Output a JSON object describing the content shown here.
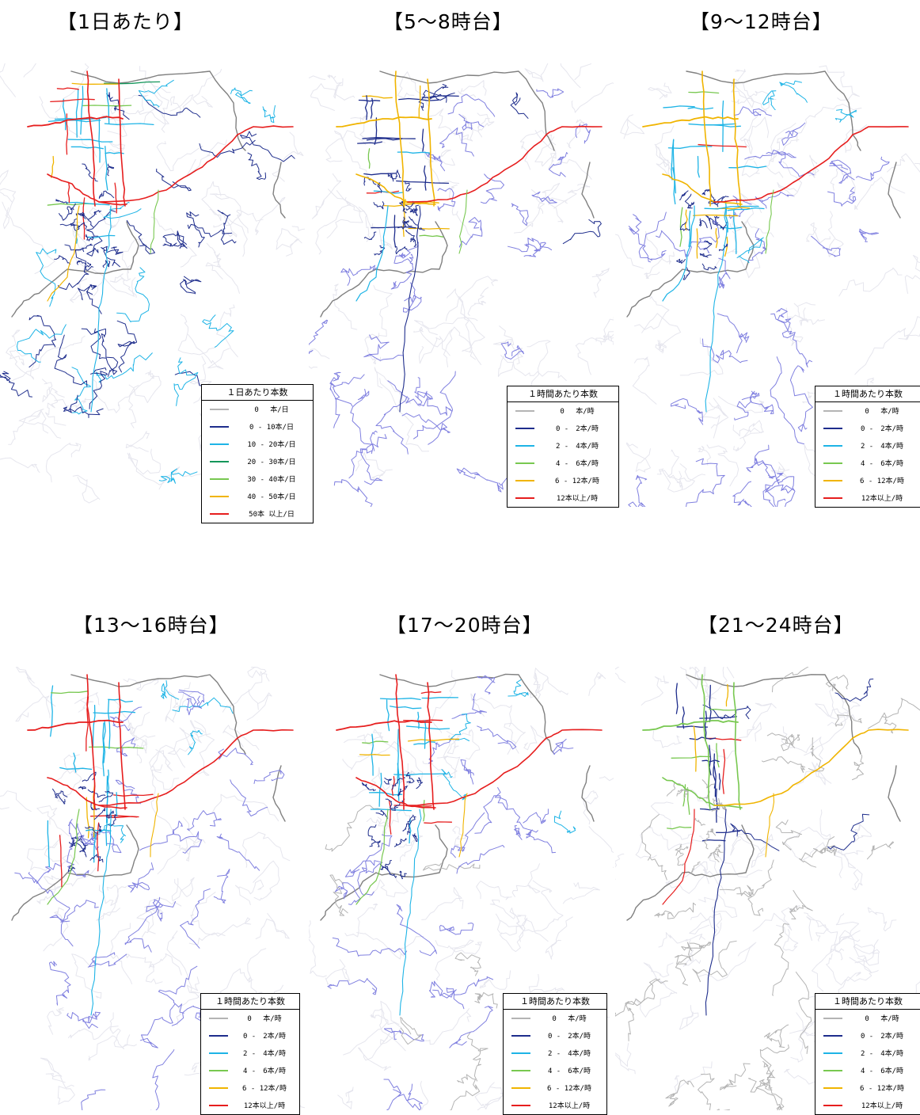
{
  "colors": {
    "c0": "#b4b4b4",
    "c1": "#1e2d8c",
    "c2": "#1eb4e6",
    "c3": "#14965a",
    "c4": "#78c850",
    "c5": "#f0b400",
    "c6": "#e61e1e",
    "base": "#8080e0",
    "boundary": "#808080"
  },
  "panels": [
    {
      "title": "【1日あたり】",
      "legend": {
        "title": "１日あたり本数",
        "items": [
          {
            "label": "0　 本/日",
            "color": "#b4b4b4"
          },
          {
            "label": "0 - 10本/日",
            "color": "#1e2d8c"
          },
          {
            "label": "10 - 20本/日",
            "color": "#1eb4e6"
          },
          {
            "label": "20 - 30本/日",
            "color": "#14965a"
          },
          {
            "label": "30 - 40本/日",
            "color": "#78c850"
          },
          {
            "label": "40 - 50本/日",
            "color": "#f0b400"
          },
          {
            "label": "50本 以上/日",
            "color": "#e61e1e"
          }
        ]
      }
    },
    {
      "title": "【5～8時台】",
      "legend": {
        "title": "１時間あたり本数",
        "items": [
          {
            "label": "0　 本/時",
            "color": "#b4b4b4"
          },
          {
            "label": "0 -　2本/時",
            "color": "#1e2d8c"
          },
          {
            "label": "2 -　4本/時",
            "color": "#1eb4e6"
          },
          {
            "label": "4 -　6本/時",
            "color": "#78c850"
          },
          {
            "label": "6 - 12本/時",
            "color": "#f0b400"
          },
          {
            "label": "12本以上/時",
            "color": "#e61e1e"
          }
        ]
      }
    },
    {
      "title": "【9～12時台】",
      "legend": {
        "title": "１時間あたり本数",
        "items": [
          {
            "label": "0　 本/時",
            "color": "#b4b4b4"
          },
          {
            "label": "0 -　2本/時",
            "color": "#1e2d8c"
          },
          {
            "label": "2 -　4本/時",
            "color": "#1eb4e6"
          },
          {
            "label": "4 -　6本/時",
            "color": "#78c850"
          },
          {
            "label": "6 - 12本/時",
            "color": "#f0b400"
          },
          {
            "label": "12本以上/時",
            "color": "#e61e1e"
          }
        ]
      }
    },
    {
      "title": "【13～16時台】",
      "legend": {
        "title": "１時間あたり本数",
        "items": [
          {
            "label": "0　 本/時",
            "color": "#b4b4b4"
          },
          {
            "label": "0 -　2本/時",
            "color": "#1e2d8c"
          },
          {
            "label": "2 -　4本/時",
            "color": "#1eb4e6"
          },
          {
            "label": "4 -　6本/時",
            "color": "#78c850"
          },
          {
            "label": "6 - 12本/時",
            "color": "#f0b400"
          },
          {
            "label": "12本以上/時",
            "color": "#e61e1e"
          }
        ]
      }
    },
    {
      "title": "【17～20時台】",
      "legend": {
        "title": "１時間あたり本数",
        "items": [
          {
            "label": "0　 本/時",
            "color": "#b4b4b4"
          },
          {
            "label": "0 -　2本/時",
            "color": "#1e2d8c"
          },
          {
            "label": "2 -　4本/時",
            "color": "#1eb4e6"
          },
          {
            "label": "4 -　6本/時",
            "color": "#78c850"
          },
          {
            "label": "6 - 12本/時",
            "color": "#f0b400"
          },
          {
            "label": "12本以上/時",
            "color": "#e61e1e"
          }
        ]
      }
    },
    {
      "title": "【21～24時台】",
      "legend": {
        "title": "１時間あたり本数",
        "items": [
          {
            "label": "0　 本/時",
            "color": "#b4b4b4"
          },
          {
            "label": "0 -　2本/時",
            "color": "#1e2d8c"
          },
          {
            "label": "2 -　4本/時",
            "color": "#1eb4e6"
          },
          {
            "label": "4 -　6本/時",
            "color": "#78c850"
          },
          {
            "label": "6 - 12本/時",
            "color": "#f0b400"
          },
          {
            "label": "12本以上/時",
            "color": "#e61e1e"
          }
        ]
      }
    }
  ]
}
